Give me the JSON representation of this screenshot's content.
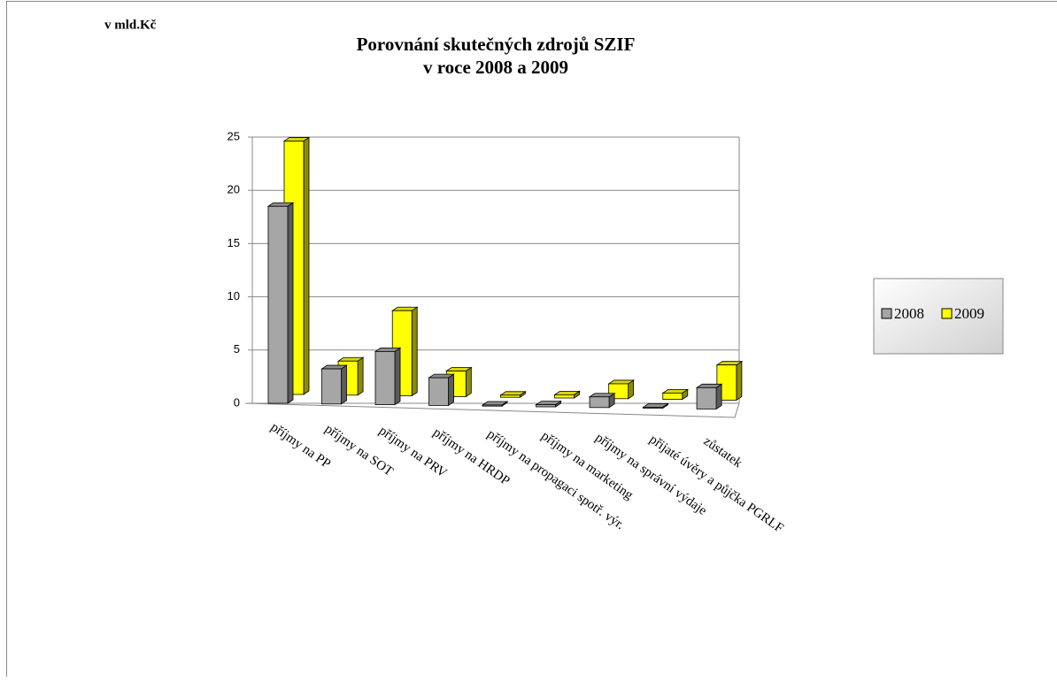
{
  "chart_data": {
    "type": "bar3d",
    "unit_label": "v mld.Kč",
    "title": [
      "Porovnání skutečných zdrojů SZIF",
      "v roce 2008 a 2009"
    ],
    "categories": [
      "příjmy na PP",
      "příjmy na SOT",
      "příjmy na PRV",
      "příjmy na HRDP",
      "příjmy na propagaci spotř. výr.",
      "příjmy na marketing",
      "příjmy na správní výdaje",
      "přijaté úvěry a půjčka PGRLF",
      "zůstatek"
    ],
    "series": [
      {
        "name": "2008",
        "color": "#a6a6a6",
        "values": [
          18.5,
          3.3,
          5.0,
          2.6,
          0.1,
          0.2,
          1.0,
          0.1,
          2.0
        ]
      },
      {
        "name": "2009",
        "color": "#ffff00",
        "values": [
          23.8,
          3.2,
          8.0,
          2.4,
          0.2,
          0.3,
          1.4,
          0.6,
          3.3
        ]
      }
    ],
    "ylim": [
      0,
      25
    ],
    "yticks": [
      0,
      5,
      10,
      15,
      20,
      25
    ],
    "grid": true,
    "legend": "right"
  }
}
